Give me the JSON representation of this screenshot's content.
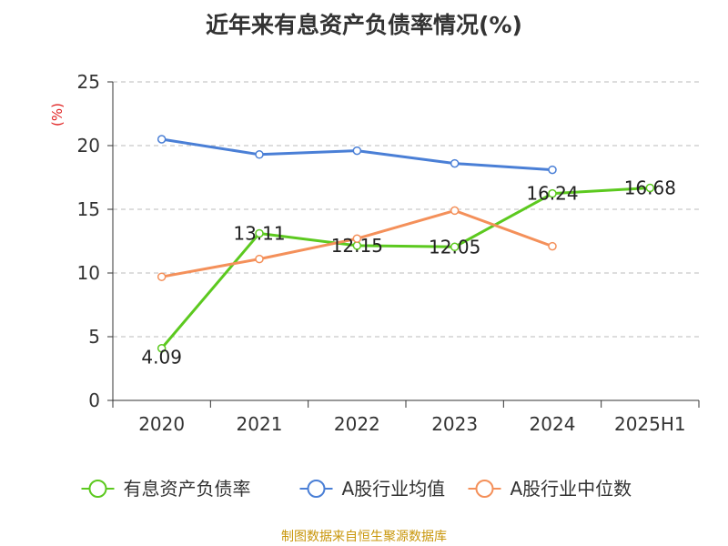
{
  "chart_data": {
    "type": "line",
    "title": "近年来有息资产负债率情况(%)",
    "ylabel": "(%)",
    "xlabel": "",
    "categories": [
      "2020",
      "2021",
      "2022",
      "2023",
      "2024",
      "2025H1"
    ],
    "ylim": [
      0,
      25
    ],
    "yticks": [
      0,
      5,
      10,
      15,
      20,
      25
    ],
    "grid": true,
    "legend_position": "bottom",
    "series": [
      {
        "name": "有息资产负债率",
        "color": "#5cc91f",
        "values": [
          4.09,
          13.11,
          12.15,
          12.05,
          16.24,
          16.68
        ],
        "labels": [
          "4.09",
          "13.11",
          "12.15",
          "12.05",
          "16.24",
          "16.68"
        ],
        "show_labels": true
      },
      {
        "name": "A股行业均值",
        "color": "#4a7fd6",
        "values": [
          20.5,
          19.3,
          19.6,
          18.6,
          18.1,
          null
        ],
        "show_labels": false
      },
      {
        "name": "A股行业中位数",
        "color": "#f4905a",
        "values": [
          9.7,
          11.1,
          12.7,
          14.9,
          12.1,
          null
        ],
        "show_labels": false
      }
    ]
  },
  "footer": {
    "source": "制图数据来自恒生聚源数据库"
  }
}
